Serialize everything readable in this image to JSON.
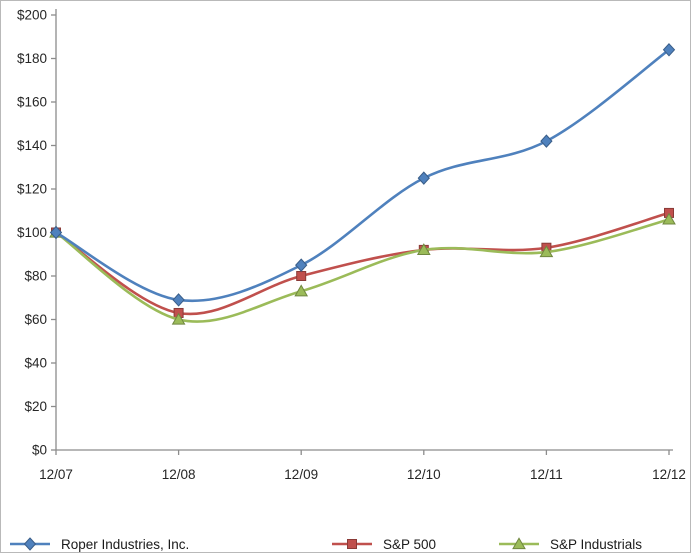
{
  "chart_data": {
    "type": "line",
    "title": "",
    "xlabel": "",
    "ylabel": "",
    "categories": [
      "12/07",
      "12/08",
      "12/09",
      "12/10",
      "12/11",
      "12/12"
    ],
    "series": [
      {
        "name": "Roper Industries, Inc.",
        "color": "#4F81BD",
        "marker": "diamond",
        "values": [
          100,
          69,
          85,
          125,
          142,
          184
        ]
      },
      {
        "name": "S&P 500",
        "color": "#C0504D",
        "marker": "square",
        "values": [
          100,
          63,
          80,
          92,
          93,
          109
        ]
      },
      {
        "name": "S&P Industrials",
        "color": "#9BBB59",
        "marker": "triangle",
        "values": [
          100,
          60,
          73,
          92,
          91,
          106
        ]
      }
    ],
    "ylim": [
      0,
      200
    ],
    "ytick_step": 20,
    "ytick_prefix": "$",
    "grid": false,
    "line_style": "smooth",
    "legend_position": "bottom",
    "axis_color": "#8c8c8c",
    "tick_label_color": "#262626"
  }
}
